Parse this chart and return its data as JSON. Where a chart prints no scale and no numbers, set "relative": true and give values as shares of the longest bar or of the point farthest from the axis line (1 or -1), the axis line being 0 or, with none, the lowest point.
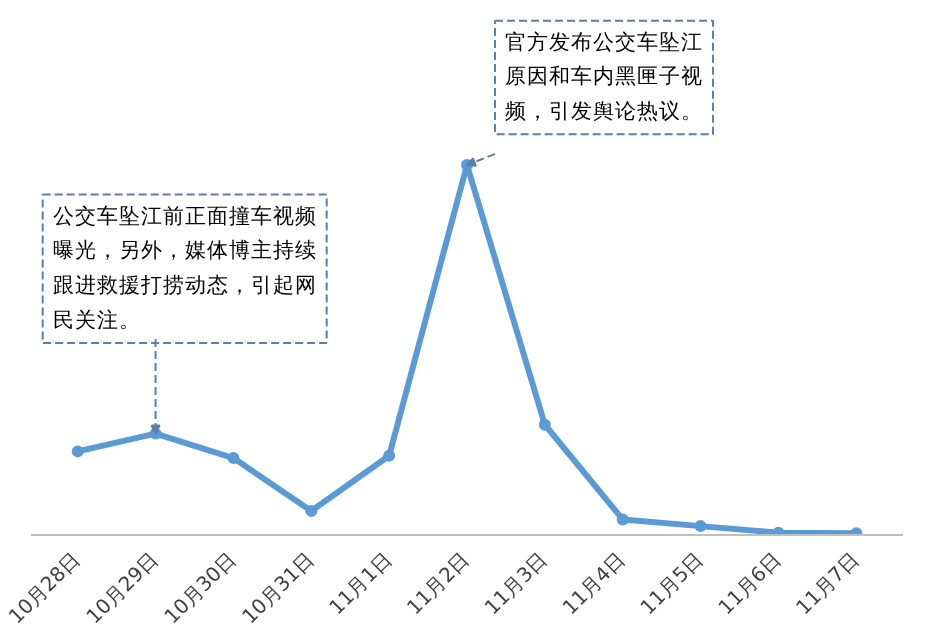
{
  "chart_data": {
    "type": "line",
    "relative": true,
    "categories": [
      "10月28日",
      "10月29日",
      "10月30日",
      "10月31日",
      "11月1日",
      "11月2日",
      "11月3日",
      "11月4日",
      "11月5日",
      "11月6日",
      "11月7日"
    ],
    "series": [
      {
        "color": "#5b9bd5",
        "values": [
          0.226,
          0.274,
          0.208,
          0.065,
          0.214,
          1,
          0.298,
          0.042,
          0.024,
          0.006,
          0.005
        ]
      }
    ],
    "marker": "circle",
    "line_style": "solid",
    "grid": false,
    "annotations": [
      {
        "text": "公交车坠江前正面撞车视频曝光，另外，媒体博主持续跟进救援打捞动态，引起网民关注。",
        "x": "10月29日",
        "y": 0.274
      },
      {
        "text": "官方发布公交车坠江原因和车内黑匣子视频，引发舆论热议。",
        "x": "11月2日",
        "y": 1
      }
    ]
  }
}
